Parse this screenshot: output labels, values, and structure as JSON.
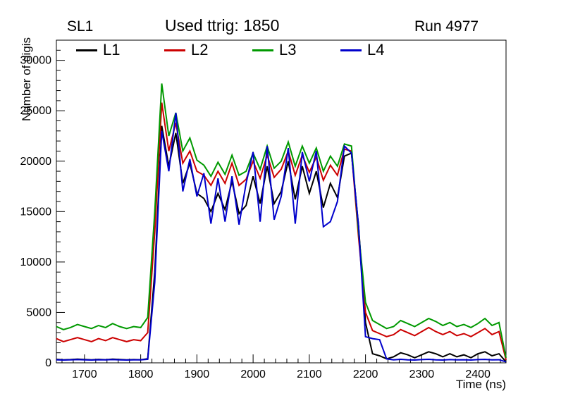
{
  "header": {
    "left": "SL1",
    "center": "Used ttrig: 1850",
    "right": "Run 4977"
  },
  "axes": {
    "x_title": "Time (ns)",
    "y_title": "Number of digis"
  },
  "chart_data": {
    "type": "line",
    "title": "Used ttrig: 1850",
    "xlabel": "Time (ns)",
    "ylabel": "Number of digis",
    "xlim": [
      1650,
      2450
    ],
    "ylim": [
      0,
      32000
    ],
    "x_ticks": [
      1700,
      1800,
      1900,
      2000,
      2100,
      2200,
      2300,
      2400
    ],
    "y_ticks": [
      0,
      5000,
      10000,
      15000,
      20000,
      25000,
      30000
    ],
    "x_minor_step": 20,
    "y_minor_step": 1000,
    "grid": false,
    "legend_position": "top-inside-horizontal",
    "x": [
      1650,
      1662.5,
      1675,
      1687.5,
      1700,
      1712.5,
      1725,
      1737.5,
      1750,
      1762.5,
      1775,
      1787.5,
      1800,
      1812.5,
      1825,
      1837.5,
      1850,
      1862.5,
      1875,
      1887.5,
      1900,
      1912.5,
      1925,
      1937.5,
      1950,
      1962.5,
      1975,
      1987.5,
      2000,
      2012.5,
      2025,
      2037.5,
      2050,
      2062.5,
      2075,
      2087.5,
      2100,
      2112.5,
      2125,
      2137.5,
      2150,
      2162.5,
      2175,
      2187.5,
      2200,
      2212.5,
      2225,
      2237.5,
      2250,
      2262.5,
      2275,
      2287.5,
      2300,
      2312.5,
      2325,
      2337.5,
      2350,
      2362.5,
      2375,
      2387.5,
      2400,
      2412.5,
      2425,
      2437.5,
      2450
    ],
    "series": [
      {
        "name": "L1",
        "color": "#000000",
        "values": [
          350,
          300,
          320,
          360,
          330,
          300,
          340,
          310,
          360,
          330,
          300,
          320,
          310,
          400,
          9000,
          23500,
          19500,
          22800,
          17800,
          19800,
          16800,
          16300,
          15000,
          16800,
          15200,
          18000,
          14800,
          15600,
          18500,
          15800,
          19500,
          15800,
          17000,
          20000,
          16200,
          19500,
          16800,
          19000,
          15400,
          17800,
          16400,
          20500,
          20800,
          13600,
          4000,
          900,
          700,
          400,
          600,
          1000,
          800,
          500,
          800,
          1100,
          900,
          600,
          900,
          600,
          800,
          500,
          900,
          1100,
          700,
          900,
          100
        ]
      },
      {
        "name": "L2",
        "color": "#cc0000",
        "values": [
          2400,
          2100,
          2300,
          2500,
          2300,
          2100,
          2400,
          2200,
          2500,
          2300,
          2100,
          2300,
          2200,
          3000,
          13000,
          25800,
          21000,
          23800,
          19800,
          21000,
          19000,
          18600,
          17600,
          19000,
          17800,
          19800,
          17600,
          18200,
          20000,
          18300,
          20600,
          18400,
          19200,
          21000,
          18600,
          20600,
          18900,
          20400,
          18100,
          19600,
          18600,
          21200,
          21000,
          12500,
          5000,
          3200,
          2900,
          2600,
          2800,
          3300,
          3000,
          2700,
          3100,
          3500,
          3100,
          2800,
          3100,
          2700,
          2900,
          2600,
          3000,
          3400,
          2800,
          3100,
          300
        ]
      },
      {
        "name": "L3",
        "color": "#009900",
        "values": [
          3600,
          3300,
          3500,
          3800,
          3600,
          3400,
          3700,
          3500,
          3900,
          3600,
          3400,
          3600,
          3500,
          4500,
          15000,
          27700,
          22500,
          24800,
          21000,
          22300,
          20100,
          19600,
          18500,
          19900,
          18700,
          20600,
          18600,
          19000,
          20800,
          19200,
          21500,
          19300,
          20000,
          21900,
          19500,
          21500,
          19800,
          21300,
          19000,
          20500,
          19500,
          21700,
          21500,
          13000,
          6000,
          4200,
          3800,
          3400,
          3600,
          4200,
          3900,
          3600,
          4000,
          4400,
          4100,
          3700,
          4000,
          3600,
          3800,
          3500,
          3900,
          4400,
          3700,
          4000,
          500
        ]
      },
      {
        "name": "L4",
        "color": "#0000cc",
        "values": [
          300,
          280,
          300,
          320,
          300,
          280,
          310,
          290,
          320,
          300,
          280,
          300,
          290,
          350,
          8000,
          23000,
          19000,
          24800,
          17000,
          20200,
          16500,
          18800,
          13800,
          18300,
          14000,
          18500,
          13700,
          17800,
          20900,
          14000,
          21500,
          14200,
          16500,
          21300,
          13800,
          20900,
          18000,
          21000,
          13500,
          14000,
          16000,
          21500,
          20800,
          13600,
          2600,
          2400,
          2300,
          400,
          300,
          350,
          300,
          280,
          320,
          350,
          300,
          280,
          320,
          290,
          310,
          280,
          320,
          340,
          300,
          310,
          100
        ]
      }
    ]
  }
}
